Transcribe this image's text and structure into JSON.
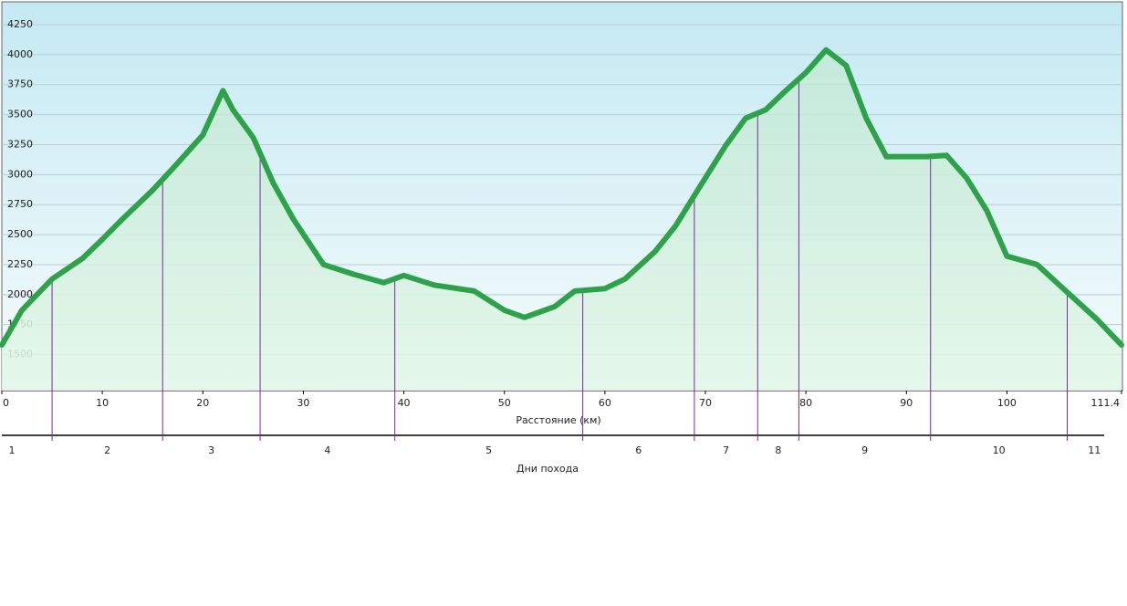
{
  "chart_data": {
    "type": "area",
    "x": [
      0,
      2,
      5,
      8,
      10,
      12,
      15,
      17,
      20,
      22,
      23,
      25,
      27,
      29,
      32,
      35,
      38,
      40,
      43,
      47,
      50,
      52,
      55,
      57,
      60,
      62,
      65,
      67,
      69,
      72,
      74,
      76,
      78,
      80,
      82,
      84,
      86,
      88,
      92,
      94,
      96,
      98,
      100,
      103,
      106,
      109,
      111.4
    ],
    "values": [
      1580,
      1870,
      2130,
      2300,
      2460,
      2630,
      2870,
      3050,
      3330,
      3700,
      3540,
      3310,
      2930,
      2630,
      2250,
      2170,
      2100,
      2160,
      2080,
      2030,
      1870,
      1810,
      1900,
      2030,
      2050,
      2130,
      2360,
      2570,
      2840,
      3240,
      3470,
      3540,
      3700,
      3850,
      4040,
      3910,
      3470,
      3150,
      3150,
      3160,
      2970,
      2700,
      2320,
      2250,
      2020,
      1790,
      1580
    ],
    "color": "#2ea24a",
    "xlim": [
      0,
      111.4
    ],
    "ylim": [
      1200,
      4440
    ],
    "xticks": [
      0,
      10,
      20,
      30,
      40,
      50,
      60,
      70,
      80,
      90,
      100,
      111.4
    ],
    "yticks": [
      1500,
      1750,
      2000,
      2250,
      2500,
      2750,
      3000,
      3250,
      3500,
      3750,
      4000,
      4250
    ],
    "grid": true,
    "xlabel": "Расстояние  (км)",
    "day_boundaries": [
      5.0,
      16.0,
      25.7,
      39.1,
      57.8,
      68.9,
      75.2,
      79.3,
      92.4,
      106.0
    ],
    "day_boundary_color": "#7a2a9a",
    "days": [
      "1",
      "2",
      "3",
      "4",
      "5",
      "6",
      "7",
      "8",
      "9",
      "10",
      "11"
    ],
    "day_axis_label": "Дни похода"
  }
}
